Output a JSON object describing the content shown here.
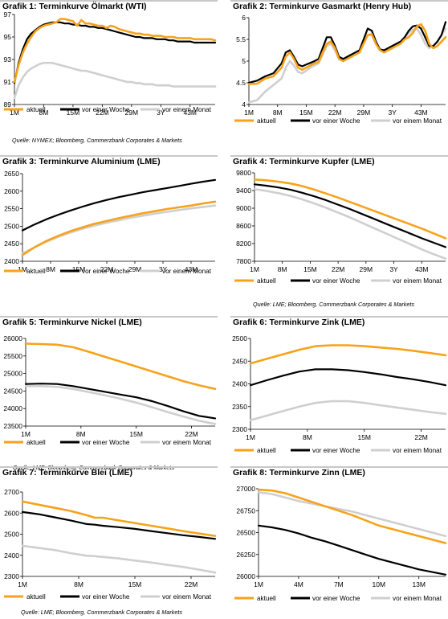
{
  "colors": {
    "aktuell": "#f7a21b",
    "woche": "#000000",
    "monat": "#cfcfcf"
  },
  "legend": {
    "aktuell": "aktuell",
    "woche": "vor einer Woche",
    "monat": "vor einem Monat"
  },
  "sources": {
    "s1": "Quelle: NYMEX; Bloomberg, Commerzbank Corporates & Markets",
    "s2": "Quelle: LME; Bloomberg, Commerzbank Corporates & Markets",
    "s3": "Quelle: LME; Bloomberg, Commerzbank Corporates & Markets",
    "s4": "Quelle: LME; Bloomberg, Commerzbank Corporates & Markets"
  },
  "chart_data": [
    {
      "type": "line",
      "title": "Grafik 1: Terminkurve Ölmarkt (WTI)",
      "categories": [
        "1M",
        "8M",
        "15M",
        "22M",
        "29M",
        "3Y",
        "43M"
      ],
      "ylim": [
        89,
        97
      ],
      "yticks": [
        89,
        91,
        93,
        95,
        97
      ],
      "x": [
        1,
        2,
        3,
        4,
        5,
        6,
        7,
        8,
        9,
        10,
        11,
        12,
        13,
        14,
        15,
        16,
        17,
        18,
        19,
        20,
        21,
        22,
        23,
        24,
        25,
        26,
        27,
        28,
        29,
        30,
        31,
        32,
        33,
        34,
        35,
        36,
        37,
        38,
        39,
        40,
        41,
        42,
        43,
        44,
        45,
        46,
        47,
        48,
        49
      ],
      "series": [
        {
          "key": "aktuell",
          "values": [
            91.0,
            92.5,
            93.6,
            94.4,
            95.0,
            95.5,
            95.8,
            96.0,
            96.1,
            96.2,
            96.3,
            96.6,
            96.6,
            96.5,
            96.4,
            96.0,
            96.5,
            96.2,
            96.2,
            96.1,
            96.0,
            96.0,
            95.8,
            96.0,
            95.9,
            95.7,
            95.6,
            95.5,
            95.4,
            95.3,
            95.3,
            95.2,
            95.2,
            95.1,
            95.1,
            95.1,
            95.0,
            95.0,
            95.0,
            94.9,
            94.9,
            94.9,
            94.9,
            94.8,
            94.8,
            94.8,
            94.8,
            94.8,
            94.7
          ]
        },
        {
          "key": "woche",
          "values": [
            90.9,
            92.7,
            93.9,
            94.8,
            95.3,
            95.6,
            95.9,
            96.1,
            96.2,
            96.3,
            96.3,
            96.3,
            96.2,
            96.2,
            96.1,
            96.1,
            96.0,
            96.0,
            95.9,
            95.9,
            95.8,
            95.8,
            95.7,
            95.6,
            95.5,
            95.4,
            95.3,
            95.2,
            95.1,
            95.0,
            95.0,
            94.9,
            94.9,
            94.9,
            94.8,
            94.8,
            94.8,
            94.7,
            94.7,
            94.6,
            94.6,
            94.6,
            94.6,
            94.5,
            94.5,
            94.5,
            94.5,
            94.5,
            94.5
          ]
        },
        {
          "key": "monat",
          "values": [
            89.6,
            90.7,
            91.4,
            91.9,
            92.2,
            92.4,
            92.6,
            92.7,
            92.7,
            92.7,
            92.6,
            92.5,
            92.4,
            92.3,
            92.2,
            92.1,
            92.0,
            92.0,
            91.9,
            91.8,
            91.7,
            91.6,
            91.5,
            91.4,
            91.3,
            91.2,
            91.1,
            91.0,
            91.0,
            90.9,
            90.9,
            90.8,
            90.8,
            90.8,
            90.7,
            90.7,
            90.7,
            90.7,
            90.6,
            90.6,
            90.6,
            90.6,
            90.6,
            90.6,
            90.6,
            90.6,
            90.6,
            90.6,
            90.6
          ]
        }
      ]
    },
    {
      "type": "line",
      "title": "Grafik 2: Terminkurve Gasmarkt (Henry Hub)",
      "categories": [
        "1M",
        "8M",
        "15M",
        "22M",
        "29M",
        "3Y",
        "43M"
      ],
      "ylim": [
        4.0,
        6.0
      ],
      "yticks": [
        4.0,
        4.5,
        5.0,
        5.5,
        6.0
      ],
      "x": [
        1,
        3,
        5,
        7,
        9,
        10,
        11,
        12,
        13,
        14,
        15,
        16,
        17,
        18,
        19,
        20,
        21,
        22,
        23,
        24,
        25,
        26,
        27,
        28,
        29,
        30,
        31,
        32,
        33,
        34,
        35,
        36,
        37,
        38,
        39,
        40,
        41,
        42,
        43,
        44,
        45,
        46,
        47,
        48,
        49
      ],
      "series": [
        {
          "key": "aktuell",
          "values": [
            4.47,
            4.48,
            4.6,
            4.65,
            4.85,
            5.1,
            5.2,
            5.05,
            4.85,
            4.8,
            4.85,
            4.9,
            4.95,
            4.98,
            5.2,
            5.4,
            5.45,
            5.3,
            5.05,
            5.0,
            5.05,
            5.1,
            5.15,
            5.2,
            5.4,
            5.6,
            5.62,
            5.4,
            5.25,
            5.2,
            5.25,
            5.3,
            5.35,
            5.4,
            5.5,
            5.55,
            5.65,
            5.8,
            5.85,
            5.7,
            5.4,
            5.3,
            5.35,
            5.45,
            5.55
          ]
        },
        {
          "key": "woche",
          "values": [
            4.5,
            4.55,
            4.65,
            4.72,
            4.95,
            5.2,
            5.25,
            5.1,
            4.92,
            4.88,
            4.92,
            4.96,
            5.0,
            5.05,
            5.3,
            5.55,
            5.55,
            5.35,
            5.1,
            5.05,
            5.1,
            5.15,
            5.2,
            5.25,
            5.5,
            5.75,
            5.7,
            5.45,
            5.27,
            5.25,
            5.3,
            5.35,
            5.4,
            5.45,
            5.55,
            5.7,
            5.8,
            5.82,
            5.75,
            5.55,
            5.35,
            5.35,
            5.45,
            5.6,
            5.9
          ]
        },
        {
          "key": "monat",
          "values": [
            4.05,
            4.1,
            4.3,
            4.45,
            4.6,
            4.85,
            5.0,
            4.9,
            4.75,
            4.72,
            4.78,
            4.85,
            4.9,
            4.95,
            5.15,
            5.35,
            5.4,
            5.25,
            5.05,
            5.02,
            5.08,
            5.12,
            5.18,
            5.22,
            5.45,
            5.6,
            5.6,
            5.4,
            5.25,
            5.22,
            5.28,
            5.32,
            5.38,
            5.42,
            5.52,
            5.65,
            5.72,
            5.75,
            5.6,
            5.4,
            5.3,
            5.35,
            5.45,
            5.6,
            5.75
          ]
        }
      ]
    },
    {
      "type": "line",
      "title": "Grafik 3: Terminkurve Aluminium (LME)",
      "categories": [
        "1M",
        "8M",
        "15M",
        "22M",
        "29M",
        "3Y",
        "43M"
      ],
      "ylim": [
        2400,
        2650
      ],
      "yticks": [
        2400,
        2450,
        2500,
        2550,
        2600,
        2650
      ],
      "x": [
        1,
        4,
        7,
        10,
        13,
        16,
        19,
        22,
        25,
        28,
        31,
        34,
        37,
        40,
        43,
        46,
        49
      ],
      "series": [
        {
          "key": "aktuell",
          "values": [
            2418,
            2440,
            2458,
            2473,
            2486,
            2497,
            2507,
            2515,
            2523,
            2530,
            2537,
            2543,
            2549,
            2554,
            2559,
            2565,
            2570
          ]
        },
        {
          "key": "woche",
          "values": [
            2488,
            2505,
            2520,
            2533,
            2545,
            2556,
            2566,
            2575,
            2583,
            2590,
            2597,
            2603,
            2609,
            2615,
            2621,
            2627,
            2632
          ]
        },
        {
          "key": "monat",
          "values": [
            2422,
            2440,
            2456,
            2470,
            2482,
            2493,
            2502,
            2510,
            2517,
            2524,
            2530,
            2536,
            2541,
            2546,
            2551,
            2555,
            2559
          ]
        }
      ]
    },
    {
      "type": "line",
      "title": "Grafik 4: Terminkurve Kupfer (LME)",
      "categories": [
        "1M",
        "8M",
        "15M",
        "22M",
        "29M",
        "3Y",
        "43M"
      ],
      "ylim": [
        7800,
        9800
      ],
      "yticks": [
        7800,
        8200,
        8600,
        9000,
        9400,
        9800
      ],
      "x": [
        1,
        4,
        7,
        10,
        13,
        16,
        19,
        22,
        25,
        28,
        31,
        34,
        37,
        40,
        43,
        46,
        49
      ],
      "series": [
        {
          "key": "aktuell",
          "values": [
            9650,
            9630,
            9600,
            9560,
            9500,
            9420,
            9330,
            9240,
            9140,
            9040,
            8940,
            8840,
            8740,
            8640,
            8540,
            8430,
            8320
          ]
        },
        {
          "key": "woche",
          "values": [
            9540,
            9510,
            9470,
            9420,
            9350,
            9270,
            9180,
            9080,
            8980,
            8870,
            8760,
            8650,
            8540,
            8430,
            8320,
            8220,
            8120
          ]
        },
        {
          "key": "monat",
          "values": [
            9430,
            9390,
            9340,
            9280,
            9200,
            9110,
            9010,
            8900,
            8790,
            8670,
            8550,
            8430,
            8310,
            8190,
            8070,
            7960,
            7860
          ]
        }
      ]
    },
    {
      "type": "line",
      "title": "Grafik 5: Terminkurve Nickel (LME)",
      "categories": [
        "1M",
        "8M",
        "15M",
        "22M"
      ],
      "ylim": [
        23500,
        26000
      ],
      "yticks": [
        23500,
        24000,
        24500,
        25000,
        25500,
        26000
      ],
      "x": [
        1,
        3,
        5,
        7,
        9,
        11,
        13,
        15,
        17,
        19,
        21,
        23,
        25
      ],
      "series": [
        {
          "key": "aktuell",
          "values": [
            25850,
            25840,
            25820,
            25750,
            25620,
            25480,
            25340,
            25200,
            25060,
            24920,
            24780,
            24660,
            24560
          ]
        },
        {
          "key": "woche",
          "values": [
            24700,
            24710,
            24700,
            24640,
            24560,
            24480,
            24400,
            24320,
            24210,
            24070,
            23920,
            23790,
            23720
          ]
        },
        {
          "key": "monat",
          "values": [
            24640,
            24640,
            24620,
            24560,
            24470,
            24380,
            24280,
            24170,
            24040,
            23900,
            23770,
            23650,
            23560
          ]
        }
      ]
    },
    {
      "type": "line",
      "title": "Grafik 6: Terminkurve Zink (LME)",
      "categories": [
        "1M",
        "8M",
        "15M",
        "22M"
      ],
      "ylim": [
        2300,
        2500
      ],
      "yticks": [
        2300,
        2350,
        2400,
        2450,
        2500
      ],
      "x": [
        1,
        3,
        5,
        7,
        9,
        11,
        13,
        15,
        17,
        19,
        21,
        23,
        25
      ],
      "series": [
        {
          "key": "aktuell",
          "values": [
            2445,
            2455,
            2465,
            2475,
            2483,
            2485,
            2485,
            2483,
            2480,
            2477,
            2473,
            2468,
            2463
          ]
        },
        {
          "key": "woche",
          "values": [
            2397,
            2408,
            2418,
            2427,
            2432,
            2432,
            2430,
            2426,
            2421,
            2415,
            2410,
            2404,
            2397
          ]
        },
        {
          "key": "monat",
          "values": [
            2320,
            2330,
            2340,
            2350,
            2358,
            2362,
            2362,
            2358,
            2353,
            2348,
            2343,
            2338,
            2334
          ]
        }
      ]
    },
    {
      "type": "line",
      "title": "Grafik 7: Terminkurve Blei (LME)",
      "categories": [
        "1M",
        "8M",
        "15M",
        "22M"
      ],
      "ylim": [
        2300,
        2700
      ],
      "yticks": [
        2300,
        2400,
        2500,
        2600,
        2700
      ],
      "x": [
        1,
        3,
        5,
        7,
        9,
        10,
        11,
        13,
        15,
        17,
        19,
        21,
        23,
        25
      ],
      "series": [
        {
          "key": "aktuell",
          "values": [
            2655,
            2640,
            2625,
            2610,
            2590,
            2578,
            2578,
            2565,
            2553,
            2540,
            2528,
            2515,
            2503,
            2492
          ]
        },
        {
          "key": "woche",
          "values": [
            2605,
            2595,
            2580,
            2565,
            2548,
            2545,
            2540,
            2533,
            2525,
            2515,
            2505,
            2495,
            2487,
            2478
          ]
        },
        {
          "key": "monat",
          "values": [
            2445,
            2435,
            2425,
            2410,
            2398,
            2396,
            2392,
            2385,
            2375,
            2366,
            2355,
            2345,
            2332,
            2318
          ]
        }
      ]
    },
    {
      "type": "line",
      "title": "Grafik 8: Terminkurve Zinn (LME)",
      "categories": [
        "1M",
        "4M",
        "7M",
        "10M",
        "13M"
      ],
      "ylim": [
        26000,
        27000
      ],
      "yticks": [
        26000,
        26250,
        26500,
        26750,
        27000
      ],
      "x": [
        1,
        2,
        3,
        4,
        5,
        6,
        7,
        8,
        9,
        10,
        11,
        12,
        13,
        14,
        15
      ],
      "series": [
        {
          "key": "aktuell",
          "values": [
            26990,
            26980,
            26950,
            26900,
            26850,
            26800,
            26750,
            26700,
            26640,
            26580,
            26540,
            26500,
            26460,
            26420,
            26380
          ]
        },
        {
          "key": "woche",
          "values": [
            26580,
            26560,
            26530,
            26490,
            26440,
            26400,
            26350,
            26300,
            26250,
            26200,
            26160,
            26120,
            26080,
            26050,
            26020
          ]
        },
        {
          "key": "monat",
          "values": [
            26960,
            26940,
            26900,
            26860,
            26830,
            26800,
            26770,
            26740,
            26700,
            26660,
            26620,
            26580,
            26540,
            26500,
            26460
          ]
        }
      ]
    }
  ]
}
